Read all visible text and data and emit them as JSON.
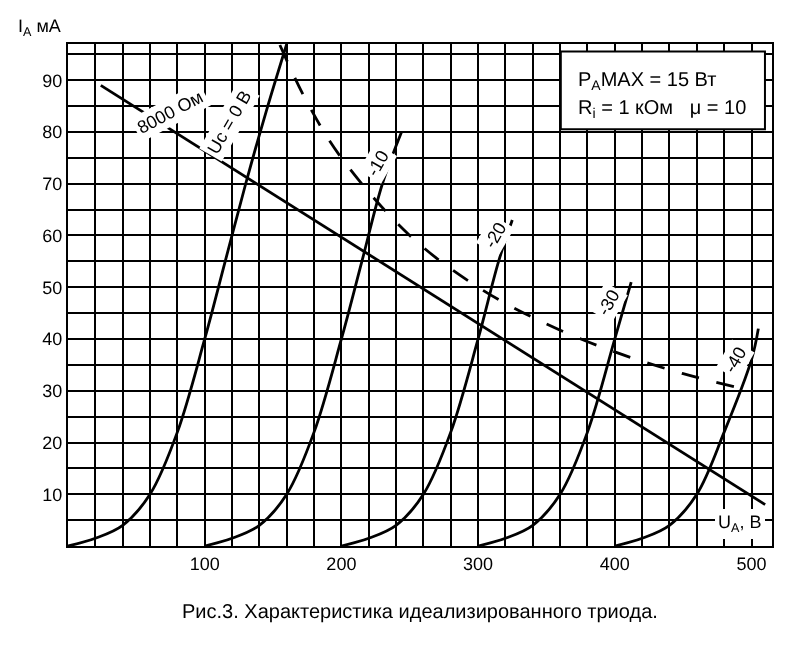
{
  "chart_data": {
    "type": "line",
    "xlabel": "U$_{A}$, В",
    "ylabel": "I$_{A}$ мА",
    "xlim": [
      0,
      515
    ],
    "ylim": [
      0,
      97
    ],
    "xticks": [
      {
        "value": 0,
        "label": null
      },
      {
        "value": 20,
        "label": null
      },
      {
        "value": 40,
        "label": null
      },
      {
        "value": 60,
        "label": null
      },
      {
        "value": 80,
        "label": null
      },
      100,
      {
        "value": 120,
        "label": null
      },
      {
        "value": 140,
        "label": null
      },
      {
        "value": 160,
        "label": null
      },
      {
        "value": 180,
        "label": null
      },
      200,
      {
        "value": 220,
        "label": null
      },
      {
        "value": 240,
        "label": null
      },
      {
        "value": 260,
        "label": null
      },
      {
        "value": 280,
        "label": null
      },
      300,
      {
        "value": 320,
        "label": null
      },
      {
        "value": 340,
        "label": null
      },
      {
        "value": 360,
        "label": null
      },
      {
        "value": 380,
        "label": null
      },
      400,
      {
        "value": 420,
        "label": null
      },
      {
        "value": 440,
        "label": null
      },
      {
        "value": 460,
        "label": null
      },
      {
        "value": 480,
        "label": null
      },
      500
    ],
    "yticks": [
      {
        "value": 5,
        "label": null
      },
      10,
      {
        "value": 15,
        "label": null
      },
      20,
      {
        "value": 25,
        "label": null
      },
      30,
      {
        "value": 35,
        "label": null
      },
      40,
      {
        "value": 45,
        "label": null
      },
      50,
      {
        "value": 55,
        "label": null
      },
      60,
      {
        "value": 65,
        "label": null
      },
      70,
      {
        "value": 75,
        "label": null
      },
      80,
      {
        "value": 85,
        "label": null
      },
      90,
      {
        "value": 95,
        "label": null
      }
    ],
    "grid": true,
    "marker": "none",
    "series": [
      {
        "color": "#000000",
        "line_style": "solid",
        "x": [
          0,
          20,
          40,
          60,
          80,
          100,
          115,
          130,
          145,
          160
        ],
        "values": [
          0,
          1.5,
          4,
          10,
          22,
          40,
          55,
          70,
          84,
          97
        ]
      },
      {
        "color": "#000000",
        "line_style": "solid",
        "x": [
          100,
          120,
          140,
          160,
          180,
          200,
          215,
          230,
          244
        ],
        "values": [
          0,
          1.5,
          4,
          10,
          22,
          40,
          55,
          70,
          80
        ]
      },
      {
        "color": "#000000",
        "line_style": "solid",
        "x": [
          200,
          220,
          240,
          260,
          280,
          300,
          315,
          325
        ],
        "values": [
          0,
          1.5,
          4,
          10,
          22,
          40,
          55,
          63
        ]
      },
      {
        "color": "#000000",
        "line_style": "solid",
        "x": [
          300,
          320,
          340,
          360,
          380,
          400,
          412
        ],
        "values": [
          0,
          1.5,
          4,
          10,
          22,
          40,
          51
        ]
      },
      {
        "color": "#000000",
        "line_style": "solid",
        "x": [
          400,
          420,
          440,
          460,
          480,
          500,
          505
        ],
        "values": [
          0,
          1.5,
          4,
          10,
          22,
          36,
          42
        ]
      },
      {
        "color": "#000000",
        "line_style": "dashed",
        "x": [
          155,
          175,
          200,
          250,
          300,
          350,
          400,
          450,
          500
        ],
        "values": [
          96.8,
          85.7,
          75,
          60,
          50,
          42.9,
          37.5,
          33.3,
          30
        ]
      },
      {
        "color": "#000000",
        "line_style": "solid",
        "x": [
          24,
          510
        ],
        "values": [
          89,
          8
        ]
      }
    ],
    "annotations": [
      {
        "text": "Uc = 0 В",
        "x": 118,
        "y": 82
      },
      {
        "text": "-10",
        "x": 226,
        "y": 74
      },
      {
        "text": "-20",
        "x": 312,
        "y": 60
      },
      {
        "text": "-30",
        "x": 396,
        "y": 47
      },
      {
        "text": "-40",
        "x": 488,
        "y": 36
      },
      {
        "text": "8000 Ом",
        "x": 75,
        "y": 84
      },
      "P$_{A}$MAX = 15 Вт",
      "R$_{i}$ = 1 кОм   μ = 10",
      "Рис.3. Характеристика идеализированного триода."
    ]
  }
}
